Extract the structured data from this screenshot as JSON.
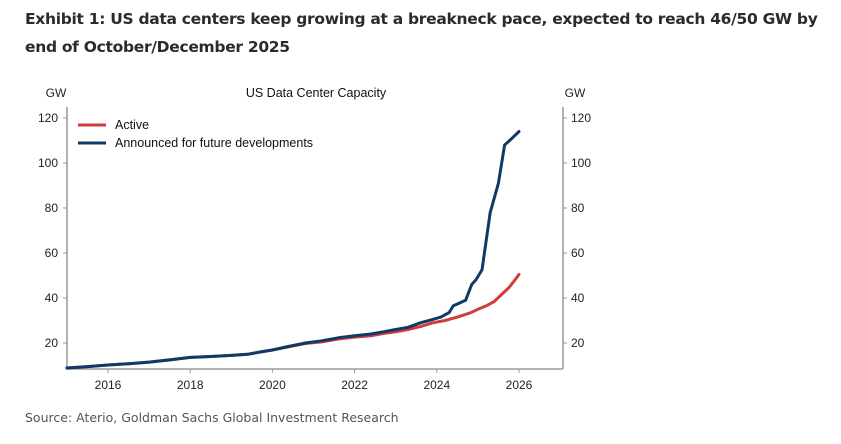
{
  "exhibit": {
    "title": "Exhibit 1: US data centers keep growing at a breakneck pace, expected to reach 46/50 GW by end of October/December 2025",
    "source": "Source: Aterio, Goldman Sachs Global Investment Research"
  },
  "chart_data": {
    "type": "line",
    "title": "US Data Center Capacity",
    "xlabel": "",
    "ylabel": "GW",
    "ylabel_right": "GW",
    "xlim": [
      2015.0,
      2027.0
    ],
    "ylim": [
      8.5,
      125
    ],
    "xticks": [
      2016,
      2018,
      2020,
      2022,
      2024,
      2026
    ],
    "yticks": [
      20,
      40,
      60,
      80,
      100,
      120
    ],
    "grid": false,
    "legend_position": "top-left",
    "series": [
      {
        "name": "Active",
        "color": "#d13b3b",
        "points": [
          [
            2015.0,
            8.9
          ],
          [
            2015.5,
            9.5
          ],
          [
            2016.0,
            10.2
          ],
          [
            2016.5,
            10.8
          ],
          [
            2017.0,
            11.5
          ],
          [
            2017.5,
            12.5
          ],
          [
            2018.0,
            13.6
          ],
          [
            2018.5,
            14.0
          ],
          [
            2019.0,
            14.5
          ],
          [
            2019.4,
            15.0
          ],
          [
            2019.7,
            16.0
          ],
          [
            2020.0,
            16.9
          ],
          [
            2020.4,
            18.3
          ],
          [
            2020.8,
            19.8
          ],
          [
            2021.2,
            20.5
          ],
          [
            2021.6,
            21.8
          ],
          [
            2022.0,
            22.6
          ],
          [
            2022.4,
            23.2
          ],
          [
            2022.7,
            24.2
          ],
          [
            2023.0,
            25.0
          ],
          [
            2023.3,
            26.0
          ],
          [
            2023.6,
            27.3
          ],
          [
            2023.9,
            29.0
          ],
          [
            2024.2,
            30.0
          ],
          [
            2024.5,
            31.5
          ],
          [
            2024.8,
            33.3
          ],
          [
            2025.0,
            35.0
          ],
          [
            2025.2,
            36.5
          ],
          [
            2025.4,
            38.5
          ],
          [
            2025.6,
            42.0
          ],
          [
            2025.75,
            44.5
          ],
          [
            2025.9,
            48.0
          ],
          [
            2026.0,
            50.5
          ]
        ]
      },
      {
        "name": "Announced for future developments",
        "color": "#0d3b66",
        "points": [
          [
            2015.0,
            8.9
          ],
          [
            2015.5,
            9.5
          ],
          [
            2016.0,
            10.2
          ],
          [
            2016.5,
            10.8
          ],
          [
            2017.0,
            11.5
          ],
          [
            2017.5,
            12.5
          ],
          [
            2018.0,
            13.6
          ],
          [
            2018.5,
            14.0
          ],
          [
            2019.0,
            14.5
          ],
          [
            2019.4,
            15.0
          ],
          [
            2019.7,
            16.0
          ],
          [
            2020.0,
            16.9
          ],
          [
            2020.4,
            18.5
          ],
          [
            2020.8,
            20.0
          ],
          [
            2021.2,
            21.0
          ],
          [
            2021.6,
            22.3
          ],
          [
            2022.0,
            23.2
          ],
          [
            2022.4,
            24.0
          ],
          [
            2022.7,
            25.0
          ],
          [
            2023.0,
            26.0
          ],
          [
            2023.3,
            27.0
          ],
          [
            2023.6,
            29.0
          ],
          [
            2023.9,
            30.5
          ],
          [
            2024.1,
            31.5
          ],
          [
            2024.3,
            33.5
          ],
          [
            2024.4,
            36.5
          ],
          [
            2024.7,
            39.0
          ],
          [
            2024.85,
            46.0
          ],
          [
            2024.95,
            48.0
          ],
          [
            2025.1,
            52.5
          ],
          [
            2025.3,
            78.0
          ],
          [
            2025.5,
            91.0
          ],
          [
            2025.65,
            108.0
          ],
          [
            2025.8,
            110.5
          ],
          [
            2026.0,
            114.0
          ]
        ]
      }
    ]
  }
}
